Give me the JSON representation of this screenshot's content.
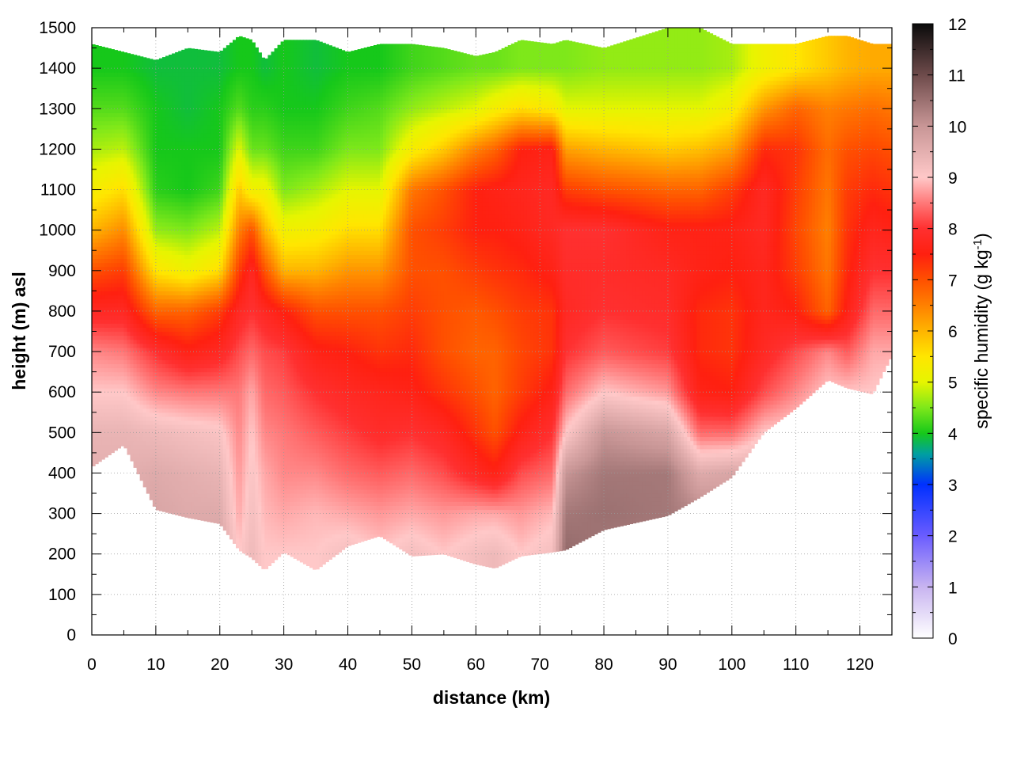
{
  "chart_data": {
    "type": "heatmap",
    "title": "",
    "xlabel": "distance (km)",
    "ylabel": "height (m) asl",
    "xlim": [
      0,
      125
    ],
    "ylim": [
      0,
      1500
    ],
    "x_ticks": [
      "0",
      "10",
      "20",
      "30",
      "40",
      "50",
      "60",
      "70",
      "80",
      "90",
      "100",
      "110",
      "120"
    ],
    "y_ticks": [
      "0",
      "100",
      "200",
      "300",
      "400",
      "500",
      "600",
      "700",
      "800",
      "900",
      "1000",
      "1100",
      "1200",
      "1300",
      "1400",
      "1500"
    ],
    "grid": true,
    "colorbar": {
      "label": "specific humidity (g kg",
      "label_sup": "-1",
      "label_end": ")",
      "range": [
        0,
        12
      ],
      "ticks": [
        "0",
        "1",
        "2",
        "3",
        "4",
        "5",
        "6",
        "7",
        "8",
        "9",
        "10",
        "11",
        "12"
      ],
      "colormap": [
        [
          0,
          "#ffffff"
        ],
        [
          1,
          "#c8b4f0"
        ],
        [
          2,
          "#6a5cff"
        ],
        [
          3,
          "#0030ff"
        ],
        [
          3.6,
          "#00a0a0"
        ],
        [
          4,
          "#16c81a"
        ],
        [
          4.5,
          "#7ee81a"
        ],
        [
          5,
          "#e6f500"
        ],
        [
          5.5,
          "#ffe600"
        ],
        [
          6,
          "#ffb400"
        ],
        [
          6.5,
          "#ff8000"
        ],
        [
          7,
          "#ff5000"
        ],
        [
          7.5,
          "#ff2010"
        ],
        [
          8,
          "#ff3030"
        ],
        [
          8.5,
          "#ff7878"
        ],
        [
          9,
          "#ffc8c8"
        ],
        [
          10,
          "#c89696"
        ],
        [
          11,
          "#6e4b4b"
        ],
        [
          12,
          "#0a0a0a"
        ]
      ]
    },
    "columns_km": [
      0,
      5,
      10,
      15,
      20,
      23,
      25,
      27,
      30,
      35,
      40,
      45,
      50,
      55,
      60,
      63,
      67,
      72,
      74,
      80,
      90,
      95,
      100,
      105,
      110,
      115,
      118,
      122,
      125
    ],
    "terrain_m": [
      415,
      470,
      310,
      290,
      275,
      210,
      190,
      160,
      205,
      160,
      220,
      245,
      195,
      200,
      175,
      165,
      195,
      205,
      210,
      260,
      295,
      340,
      390,
      500,
      560,
      630,
      610,
      595,
      690
    ],
    "top_m": [
      1460,
      1440,
      1420,
      1450,
      1440,
      1480,
      1470,
      1420,
      1470,
      1470,
      1440,
      1460,
      1460,
      1450,
      1430,
      1440,
      1470,
      1460,
      1470,
      1450,
      1500,
      1500,
      1460,
      1460,
      1460,
      1480,
      1480,
      1460,
      1460
    ],
    "profile_heights_m": [
      0,
      200,
      300,
      400,
      500,
      600,
      700,
      800,
      900,
      1000,
      1100,
      1200,
      1300,
      1400,
      1500
    ],
    "specific_humidity_g_kg": [
      [
        9.8,
        9.8,
        9.6,
        9.5,
        9.4,
        9.0,
        8.6,
        7.8,
        7.0,
        6.0,
        5.3,
        4.7,
        4.3,
        4.0,
        4.0
      ],
      [
        9.7,
        9.7,
        9.6,
        9.5,
        9.4,
        9.0,
        8.5,
        7.8,
        7.2,
        6.4,
        5.6,
        4.8,
        4.3,
        4.0,
        4.0
      ],
      [
        9.8,
        9.8,
        9.7,
        9.6,
        9.3,
        8.6,
        8.0,
        6.8,
        5.5,
        4.6,
        4.1,
        4.0,
        4.0,
        3.9,
        3.9
      ],
      [
        9.7,
        9.7,
        9.6,
        9.5,
        9.2,
        8.5,
        7.6,
        6.8,
        5.2,
        4.5,
        4.0,
        4.0,
        3.9,
        3.9,
        3.9
      ],
      [
        9.8,
        9.8,
        9.6,
        9.4,
        9.1,
        8.5,
        7.8,
        7.2,
        5.6,
        4.8,
        4.2,
        4.0,
        4.0,
        3.9,
        3.9
      ],
      [
        9.0,
        9.0,
        8.8,
        8.7,
        8.6,
        8.5,
        8.2,
        7.8,
        7.2,
        6.5,
        5.8,
        5.0,
        4.3,
        4.0,
        4.0
      ],
      [
        9.3,
        9.3,
        9.2,
        9.1,
        9.0,
        8.8,
        8.4,
        8.0,
        7.8,
        7.0,
        5.2,
        4.4,
        4.1,
        4.0,
        4.0
      ],
      [
        9.0,
        9.0,
        8.9,
        8.8,
        8.6,
        8.4,
        8.2,
        7.8,
        7.0,
        6.0,
        5.2,
        4.4,
        4.1,
        3.9,
        3.9
      ],
      [
        9.0,
        9.0,
        8.8,
        8.6,
        8.5,
        8.3,
        8.1,
        7.5,
        6.0,
        5.2,
        4.5,
        4.2,
        4.0,
        4.0,
        4.0
      ],
      [
        9.0,
        9.0,
        8.9,
        8.6,
        8.3,
        8.0,
        7.6,
        7.0,
        6.0,
        5.3,
        4.7,
        4.2,
        4.0,
        3.9,
        3.9
      ],
      [
        9.2,
        9.2,
        8.8,
        8.4,
        8.1,
        7.8,
        7.5,
        7.0,
        6.3,
        5.6,
        5.0,
        4.5,
        4.2,
        4.0,
        4.0
      ],
      [
        9.0,
        9.0,
        8.7,
        8.3,
        7.9,
        7.7,
        7.3,
        7.0,
        6.3,
        5.6,
        5.0,
        4.5,
        4.3,
        4.0,
        4.0
      ],
      [
        9.2,
        9.2,
        8.8,
        8.4,
        8.0,
        7.6,
        7.4,
        7.2,
        7.0,
        7.0,
        6.6,
        5.3,
        4.6,
        4.2,
        4.2
      ],
      [
        9.0,
        9.0,
        8.7,
        8.2,
        7.8,
        7.3,
        7.0,
        7.0,
        7.0,
        7.2,
        7.0,
        5.8,
        4.8,
        4.3,
        4.3
      ],
      [
        9.2,
        9.2,
        8.8,
        7.8,
        7.3,
        7.0,
        6.8,
        6.9,
        7.2,
        7.5,
        7.5,
        6.5,
        5.0,
        4.4,
        4.4
      ],
      [
        9.3,
        9.3,
        8.8,
        7.6,
        7.0,
        6.8,
        6.8,
        7.0,
        7.3,
        7.5,
        7.6,
        6.8,
        5.3,
        4.4,
        4.4
      ],
      [
        9.0,
        9.0,
        8.7,
        8.2,
        7.6,
        7.2,
        7.1,
        7.2,
        7.4,
        7.6,
        7.7,
        7.5,
        5.6,
        4.5,
        4.5
      ],
      [
        9.2,
        9.2,
        8.9,
        8.4,
        8.0,
        7.6,
        7.3,
        7.3,
        7.6,
        7.8,
        7.8,
        7.6,
        5.4,
        4.5,
        4.5
      ],
      [
        10.6,
        10.6,
        10.4,
        10.0,
        9.0,
        8.4,
        8.0,
        7.8,
        7.9,
        8.0,
        7.2,
        6.2,
        5.0,
        4.5,
        4.5
      ],
      [
        10.4,
        10.4,
        10.5,
        10.4,
        10.0,
        9.0,
        8.3,
        8.0,
        7.9,
        8.0,
        7.0,
        6.0,
        5.0,
        4.6,
        4.6
      ],
      [
        10.3,
        10.3,
        10.4,
        10.4,
        9.7,
        8.7,
        8.1,
        7.9,
        7.8,
        7.6,
        6.8,
        5.8,
        5.0,
        4.6,
        4.6
      ],
      [
        10.3,
        10.3,
        10.2,
        9.6,
        8.4,
        7.6,
        7.4,
        7.4,
        7.6,
        7.6,
        6.8,
        5.9,
        5.0,
        4.6,
        4.6
      ],
      [
        10.0,
        10.0,
        9.9,
        9.7,
        8.4,
        7.5,
        7.3,
        7.3,
        7.5,
        7.6,
        7.2,
        6.2,
        5.3,
        4.7,
        4.7
      ],
      [
        10.2,
        10.2,
        10.0,
        9.6,
        9.0,
        8.2,
        7.8,
        7.7,
        7.7,
        7.8,
        7.8,
        7.4,
        6.3,
        5.2,
        5.2
      ],
      [
        10.0,
        10.0,
        9.9,
        9.6,
        9.1,
        8.6,
        8.2,
        7.5,
        7.2,
        7.1,
        7.2,
        7.3,
        6.8,
        5.5,
        5.5
      ],
      [
        9.8,
        9.8,
        9.7,
        9.5,
        9.2,
        9.0,
        8.6,
        6.8,
        6.6,
        6.5,
        6.6,
        6.7,
        6.5,
        5.8,
        5.8
      ],
      [
        9.8,
        9.8,
        9.7,
        9.5,
        9.2,
        9.0,
        8.3,
        7.6,
        7.4,
        7.3,
        7.2,
        7.0,
        6.6,
        6.0,
        6.0
      ],
      [
        9.8,
        9.8,
        9.7,
        9.5,
        9.2,
        9.0,
        8.8,
        8.4,
        8.0,
        7.7,
        7.4,
        7.1,
        6.7,
        6.1,
        6.1
      ],
      [
        9.6,
        9.6,
        9.5,
        9.4,
        9.3,
        9.1,
        8.8,
        8.4,
        8.0,
        7.6,
        7.3,
        7.0,
        6.6,
        6.1,
        6.1
      ]
    ]
  }
}
